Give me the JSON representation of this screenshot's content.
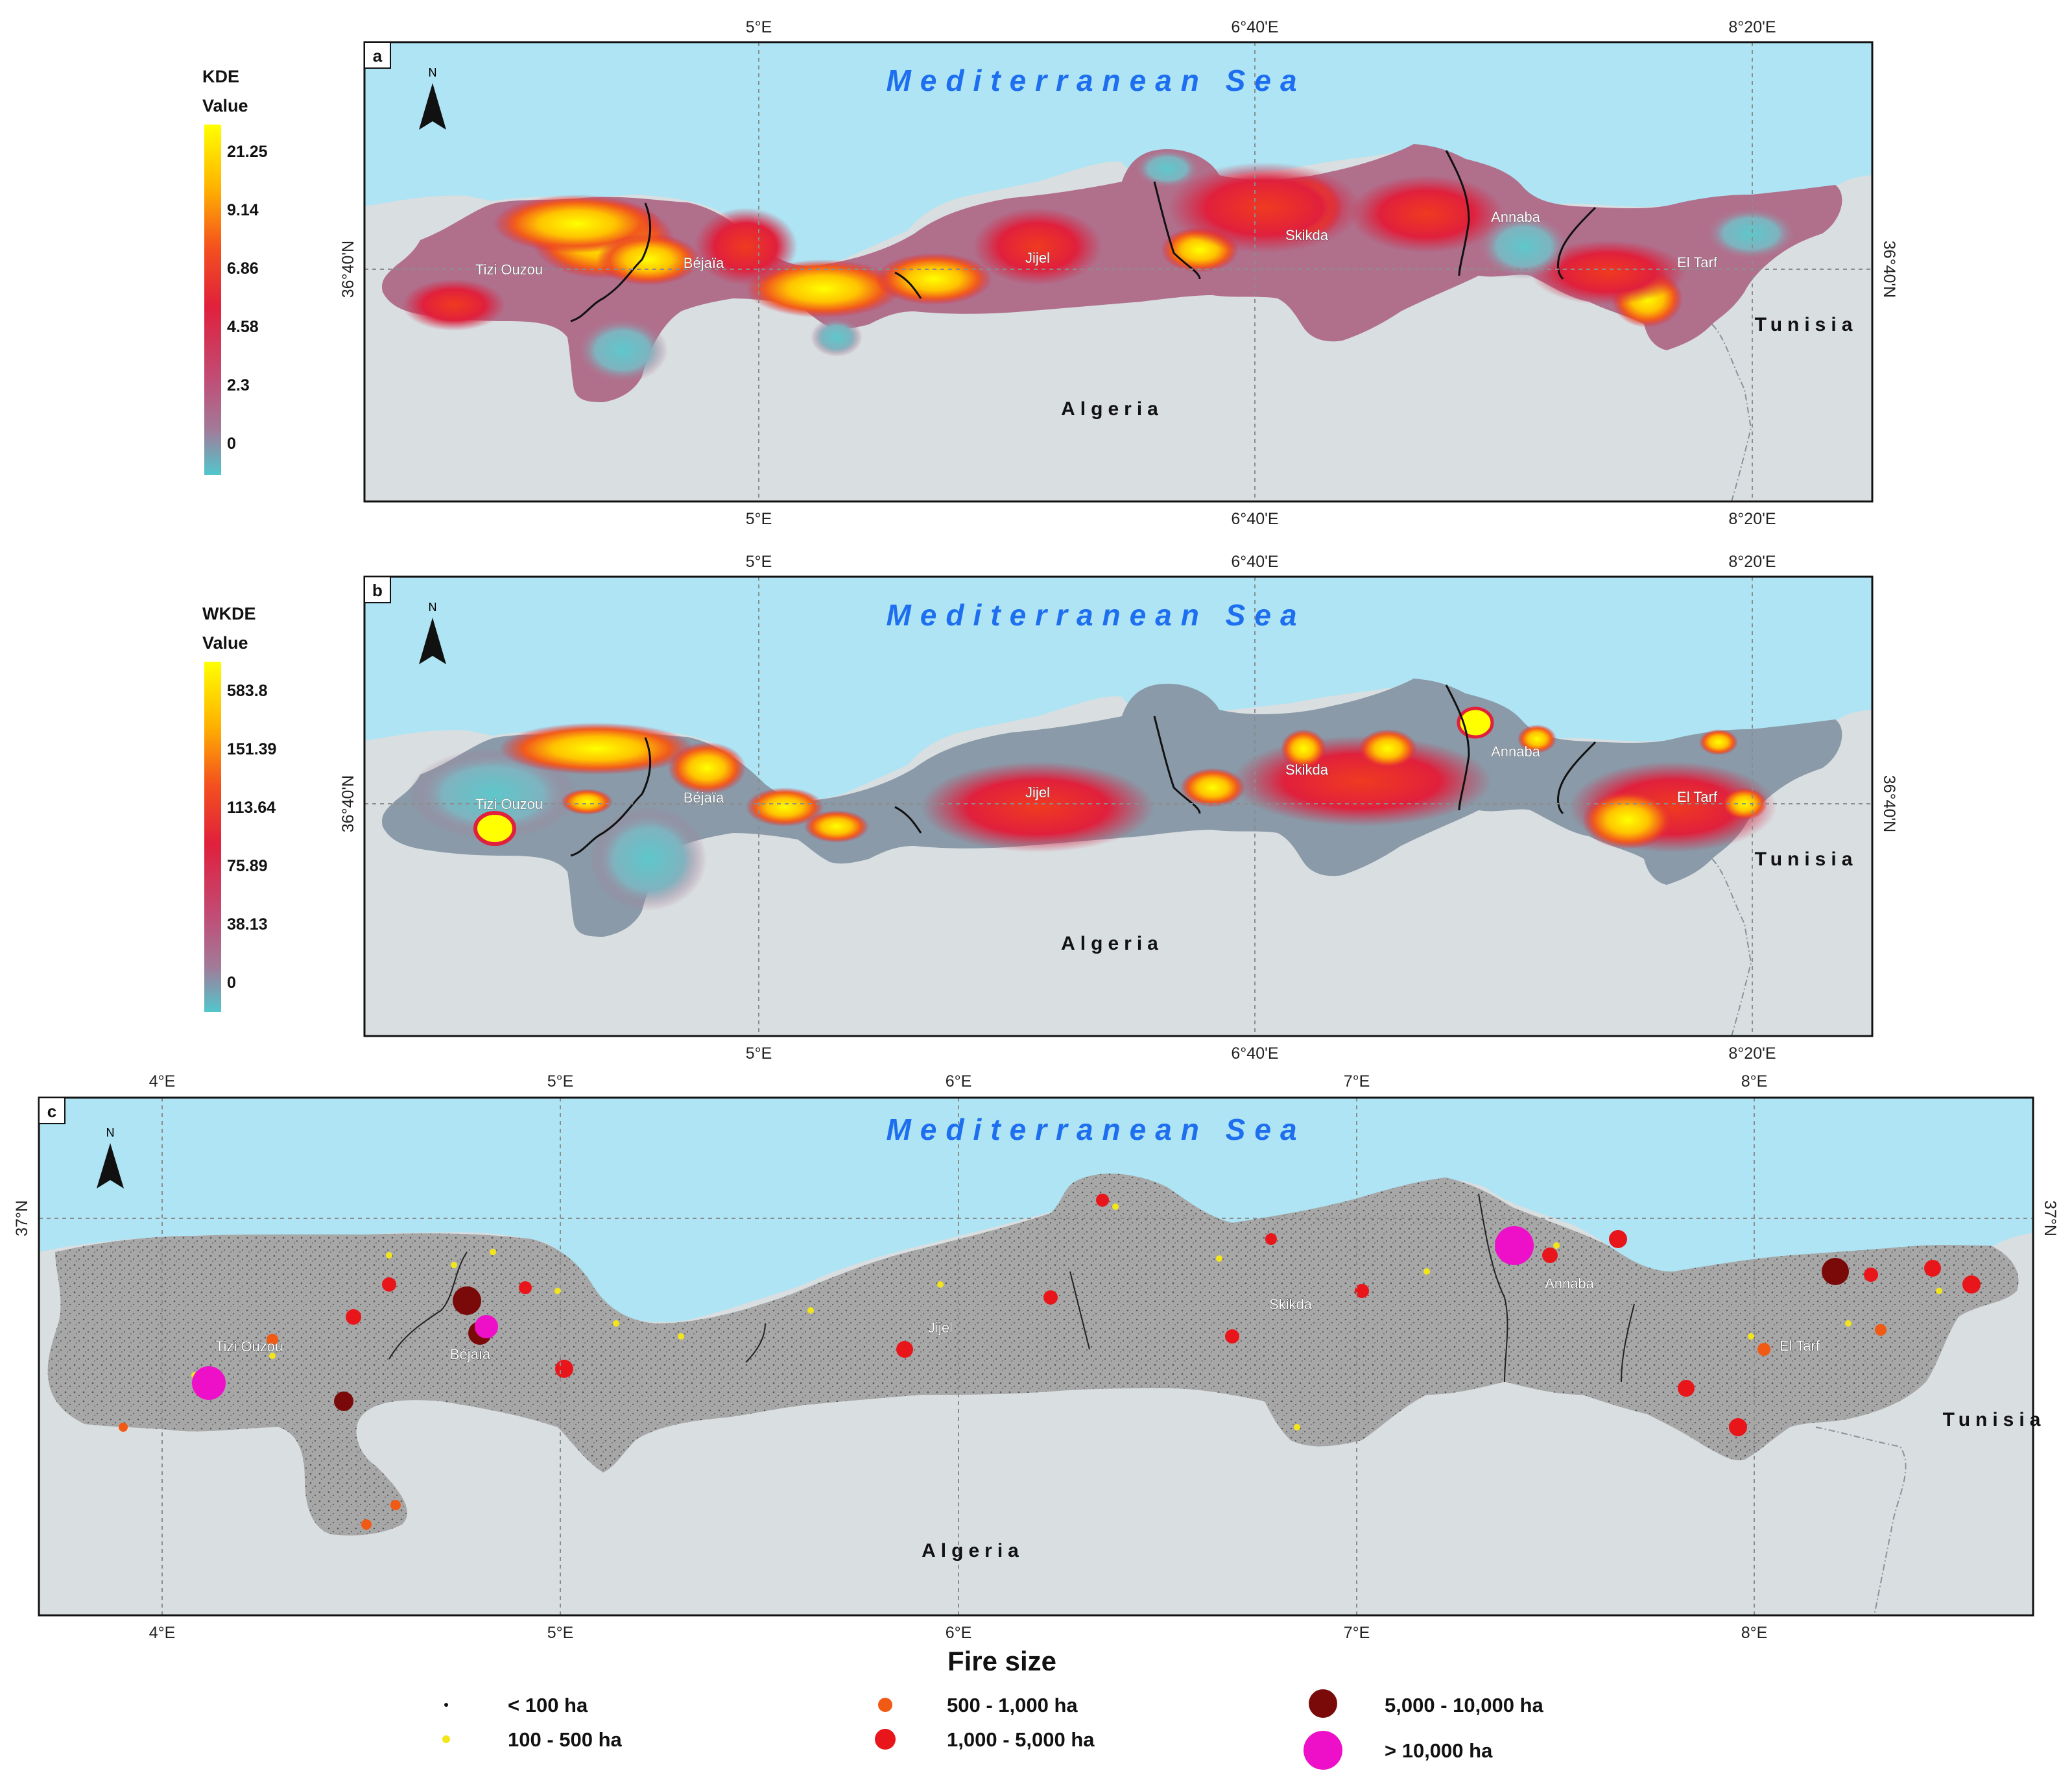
{
  "panel_a": {
    "label": "a",
    "legend_title_1": "KDE",
    "legend_title_2": "Value",
    "legend_values": [
      "21.25",
      "9.14",
      "6.86",
      "4.58",
      "2.3",
      "0"
    ],
    "coords": {
      "lon1": "5°E",
      "lon2": "6°40'E",
      "lon3": "8°20'E",
      "lat": "36°40'N"
    },
    "sea": "Mediterranean Sea",
    "country_main": "Algeria",
    "country_east": "Tunisia",
    "north": "N",
    "cities": [
      "Tizi Ouzou",
      "Béjaïa",
      "Jijel",
      "Skikda",
      "Annaba",
      "El Tarf"
    ]
  },
  "panel_b": {
    "label": "b",
    "legend_title_1": "WKDE",
    "legend_title_2": "Value",
    "legend_values": [
      "583.8",
      "151.39",
      "113.64",
      "75.89",
      "38.13",
      "0"
    ],
    "coords": {
      "lon1": "5°E",
      "lon2": "6°40'E",
      "lon3": "8°20'E",
      "lat": "36°40'N"
    },
    "sea": "Mediterranean Sea",
    "country_main": "Algeria",
    "country_east": "Tunisia",
    "north": "N",
    "cities": [
      "Tizi Ouzou",
      "Béjaïa",
      "Jijel",
      "Skikda",
      "Annaba",
      "El Tarf"
    ]
  },
  "panel_c": {
    "label": "c",
    "coords": {
      "lon": [
        "4°E",
        "5°E",
        "6°E",
        "7°E",
        "8°E"
      ],
      "lat": "37°N"
    },
    "sea": "Mediterranean Sea",
    "country_main": "Algeria",
    "country_east": "Tunisia",
    "north": "N",
    "cities": [
      "Tizi Ouzou",
      "Béjaïa",
      "Jijel",
      "Skikda",
      "Annaba",
      "El Tarf"
    ]
  },
  "fire_size_legend": {
    "title": "Fire size",
    "items": [
      {
        "label": "< 100 ha",
        "color": "#111111"
      },
      {
        "label": "100 - 500 ha",
        "color": "#f2e51a"
      },
      {
        "label": "500 - 1,000 ha",
        "color": "#f05a14"
      },
      {
        "label": "1,000 - 5,000 ha",
        "color": "#e8161b"
      },
      {
        "label": "5,000 - 10,000 ha",
        "color": "#7a0a0a"
      },
      {
        "label": "> 10,000 ha",
        "color": "#ee10c8"
      }
    ]
  },
  "colors": {
    "sea": "#aee4f3",
    "land": "#d9dee1",
    "study": "#a7a7a7",
    "hot": "#ffff00",
    "cold": "#4fc3c9"
  }
}
